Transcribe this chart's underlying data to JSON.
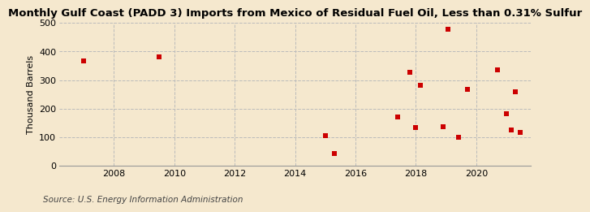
{
  "title": "Monthly Gulf Coast (PADD 3) Imports from Mexico of Residual Fuel Oil, Less than 0.31% Sulfur",
  "ylabel": "Thousand Barrels",
  "source": "Source: U.S. Energy Information Administration",
  "background_color": "#f5e8ce",
  "plot_bg_color": "#f5e8ce",
  "marker_color": "#cc0000",
  "marker_size": 18,
  "xlim": [
    2006.2,
    2021.8
  ],
  "ylim": [
    0,
    500
  ],
  "yticks": [
    0,
    100,
    200,
    300,
    400,
    500
  ],
  "xticks": [
    2008,
    2010,
    2012,
    2014,
    2016,
    2018,
    2020
  ],
  "data_x": [
    2007.0,
    2009.5,
    2015.0,
    2015.3,
    2017.4,
    2017.8,
    2018.0,
    2018.15,
    2018.9,
    2019.05,
    2019.4,
    2019.7,
    2020.7,
    2021.0,
    2021.15,
    2021.3,
    2021.45
  ],
  "data_y": [
    368,
    380,
    105,
    42,
    172,
    326,
    135,
    282,
    137,
    478,
    100,
    268,
    335,
    182,
    125,
    260,
    118
  ],
  "title_fontsize": 9.5,
  "ylabel_fontsize": 8,
  "tick_fontsize": 8,
  "source_fontsize": 7.5
}
